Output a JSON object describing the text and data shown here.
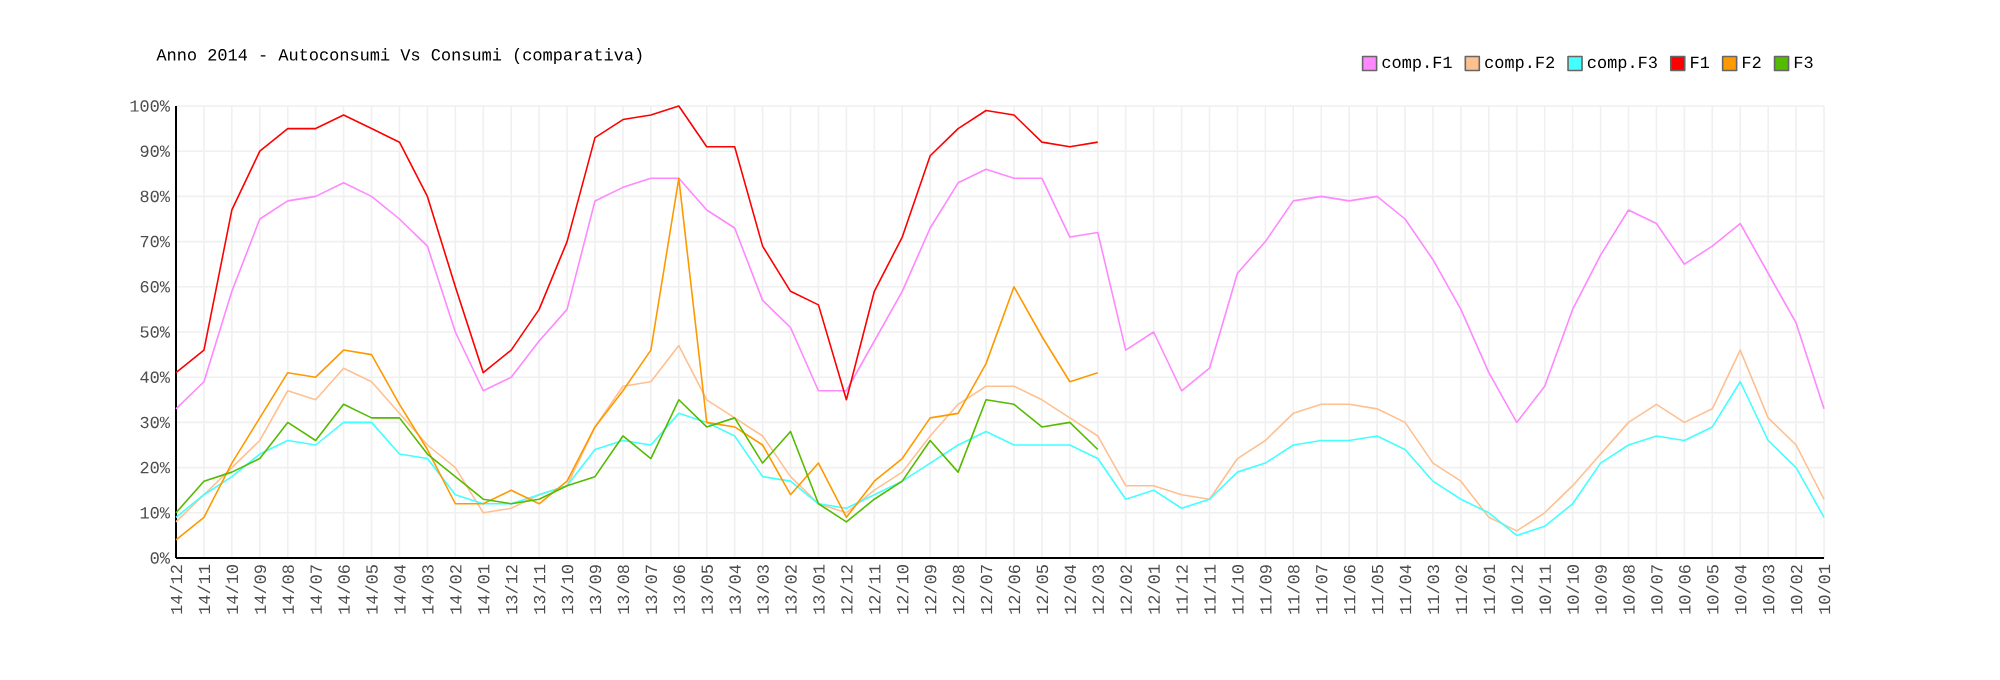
{
  "chart_data": {
    "type": "line",
    "title": "Anno 2014 - Autoconsumi Vs Consumi (comparativa)",
    "categories": [
      "14/12",
      "14/11",
      "14/10",
      "14/09",
      "14/08",
      "14/07",
      "14/06",
      "14/05",
      "14/04",
      "14/03",
      "14/02",
      "14/01",
      "13/12",
      "13/11",
      "13/10",
      "13/09",
      "13/08",
      "13/07",
      "13/06",
      "13/05",
      "13/04",
      "13/03",
      "13/02",
      "13/01",
      "12/12",
      "12/11",
      "12/10",
      "12/09",
      "12/08",
      "12/07",
      "12/06",
      "12/05",
      "12/04",
      "12/03",
      "12/02",
      "12/01",
      "11/12",
      "11/11",
      "11/10",
      "11/09",
      "11/08",
      "11/07",
      "11/06",
      "11/05",
      "11/04",
      "11/03",
      "11/02",
      "11/01",
      "10/12",
      "10/11",
      "10/10",
      "10/09",
      "10/08",
      "10/07",
      "10/06",
      "10/05",
      "10/04",
      "10/03",
      "10/02",
      "10/01"
    ],
    "series": [
      {
        "name": "comp.F1",
        "color": "#ff88ff",
        "values": [
          33,
          39,
          59,
          75,
          79,
          80,
          83,
          80,
          75,
          69,
          50,
          37,
          40,
          48,
          55,
          79,
          82,
          84,
          84,
          77,
          73,
          57,
          51,
          37,
          37,
          48,
          59,
          73,
          83,
          86,
          84,
          84,
          71,
          72,
          46,
          50,
          37,
          42,
          63,
          70,
          79,
          80,
          79,
          80,
          75,
          66,
          55,
          41,
          30,
          38,
          55,
          67,
          77,
          74,
          65,
          69,
          74,
          63,
          52,
          33
        ]
      },
      {
        "name": "comp.F2",
        "color": "#ffc090",
        "values": [
          8,
          14,
          20,
          26,
          37,
          35,
          42,
          39,
          32,
          25,
          20,
          10,
          11,
          14,
          16,
          29,
          38,
          39,
          47,
          35,
          31,
          27,
          18,
          12,
          10,
          15,
          19,
          27,
          34,
          38,
          38,
          35,
          31,
          27,
          16,
          16,
          14,
          13,
          22,
          26,
          32,
          34,
          34,
          33,
          30,
          21,
          17,
          9,
          6,
          10,
          16,
          23,
          30,
          34,
          30,
          33,
          46,
          31,
          25,
          13
        ]
      },
      {
        "name": "comp.F3",
        "color": "#44ffff",
        "values": [
          9,
          14,
          18,
          23,
          26,
          25,
          30,
          30,
          23,
          22,
          14,
          12,
          12,
          14,
          16,
          24,
          26,
          25,
          32,
          30,
          27,
          18,
          17,
          12,
          11,
          14,
          17,
          21,
          25,
          28,
          25,
          25,
          25,
          22,
          13,
          15,
          11,
          13,
          19,
          21,
          25,
          26,
          26,
          27,
          24,
          17,
          13,
          10,
          5,
          7,
          12,
          21,
          25,
          27,
          26,
          29,
          39,
          26,
          20,
          9
        ]
      },
      {
        "name": "F1",
        "color": "#ff0000",
        "values": [
          41,
          46,
          77,
          90,
          95,
          95,
          98,
          95,
          92,
          80,
          60,
          41,
          46,
          55,
          70,
          93,
          97,
          98,
          100,
          91,
          91,
          69,
          59,
          56,
          35,
          59,
          71,
          89,
          95,
          99,
          98,
          92,
          91,
          92,
          null,
          null,
          null,
          null,
          null,
          null,
          null,
          null,
          null,
          null,
          null,
          null,
          null,
          null,
          null,
          null,
          null,
          null,
          null,
          null,
          null,
          null,
          null,
          null,
          null,
          null
        ]
      },
      {
        "name": "F2",
        "color": "#ff9900",
        "values": [
          4,
          9,
          21,
          31,
          41,
          40,
          46,
          45,
          34,
          24,
          12,
          12,
          15,
          12,
          17,
          29,
          37,
          46,
          84,
          30,
          29,
          25,
          14,
          21,
          9,
          17,
          22,
          31,
          32,
          43,
          60,
          49,
          39,
          41,
          null,
          null,
          null,
          null,
          null,
          null,
          null,
          null,
          null,
          null,
          null,
          null,
          null,
          null,
          null,
          null,
          null,
          null,
          null,
          null,
          null,
          null,
          null,
          null,
          null,
          null
        ]
      },
      {
        "name": "F3",
        "color": "#55bb00",
        "values": [
          10,
          17,
          19,
          22,
          30,
          26,
          34,
          31,
          31,
          23,
          18,
          13,
          12,
          13,
          16,
          18,
          27,
          22,
          35,
          29,
          31,
          21,
          28,
          12,
          8,
          13,
          17,
          26,
          19,
          35,
          34,
          29,
          30,
          24,
          null,
          null,
          null,
          null,
          null,
          null,
          null,
          null,
          null,
          null,
          null,
          null,
          null,
          null,
          null,
          null,
          null,
          null,
          null,
          null,
          null,
          null,
          null,
          null,
          null,
          null
        ]
      }
    ],
    "ylim": [
      0,
      100
    ],
    "yticks": [
      {
        "value": 0,
        "label": "0%"
      },
      {
        "value": 10,
        "label": "10%"
      },
      {
        "value": 20,
        "label": "20%"
      },
      {
        "value": 30,
        "label": "30%"
      },
      {
        "value": 40,
        "label": "40%"
      },
      {
        "value": 50,
        "label": "50%"
      },
      {
        "value": 60,
        "label": "60%"
      },
      {
        "value": 70,
        "label": "70%"
      },
      {
        "value": 80,
        "label": "80%"
      },
      {
        "value": 90,
        "label": "90%"
      },
      {
        "value": 100,
        "label": "100%"
      }
    ],
    "grid": true,
    "legend": "top right",
    "marker": "none",
    "line_style": "solid"
  }
}
